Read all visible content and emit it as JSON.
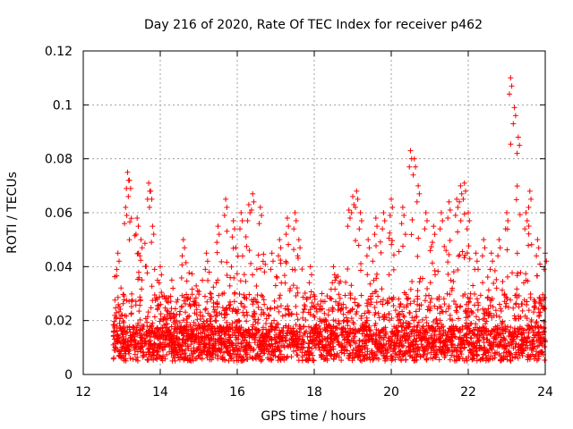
{
  "chart_data": {
    "type": "scatter",
    "title": "Day 216 of 2020, Rate Of TEC Index for receiver p462",
    "xlabel": "GPS time / hours",
    "ylabel": "ROTI / TECUs",
    "xlim": [
      12,
      24
    ],
    "ylim": [
      0,
      0.12
    ],
    "xticks": [
      "12",
      "14",
      "16",
      "18",
      "20",
      "22",
      "24"
    ],
    "yticks": [
      "0",
      "0.02",
      "0.04",
      "0.06",
      "0.08",
      "0.1",
      "0.12"
    ],
    "grid": true,
    "marker": "+",
    "color": "#ff0000",
    "series": [
      {
        "name": "ROTI",
        "x": [
          12.9,
          13.1,
          13.15,
          13.2,
          13.4,
          13.5,
          13.7,
          13.75,
          13.8,
          14.0,
          14.3,
          14.6,
          15.2,
          15.5,
          15.7,
          15.9,
          16.1,
          16.3,
          16.4,
          16.6,
          16.9,
          17.1,
          17.3,
          17.5,
          17.6,
          17.9,
          18.2,
          18.5,
          18.9,
          19.0,
          19.1,
          19.2,
          19.4,
          19.6,
          19.8,
          20.0,
          20.3,
          20.5,
          20.6,
          20.7,
          20.9,
          21.1,
          21.3,
          21.5,
          21.7,
          21.8,
          21.9,
          22.0,
          22.2,
          22.4,
          22.6,
          22.8,
          23.0,
          23.1,
          23.2,
          23.3,
          23.5,
          23.6,
          23.8,
          24.0
        ],
        "y": [
          0.045,
          0.062,
          0.075,
          0.072,
          0.058,
          0.05,
          0.071,
          0.068,
          0.055,
          0.04,
          0.035,
          0.05,
          0.045,
          0.055,
          0.065,
          0.057,
          0.06,
          0.063,
          0.067,
          0.062,
          0.045,
          0.05,
          0.058,
          0.06,
          0.05,
          0.04,
          0.03,
          0.04,
          0.061,
          0.066,
          0.068,
          0.06,
          0.05,
          0.058,
          0.06,
          0.065,
          0.062,
          0.083,
          0.08,
          0.07,
          0.06,
          0.055,
          0.06,
          0.064,
          0.065,
          0.07,
          0.071,
          0.06,
          0.045,
          0.05,
          0.045,
          0.05,
          0.06,
          0.11,
          0.099,
          0.088,
          0.06,
          0.068,
          0.05,
          0.045
        ]
      }
    ]
  }
}
